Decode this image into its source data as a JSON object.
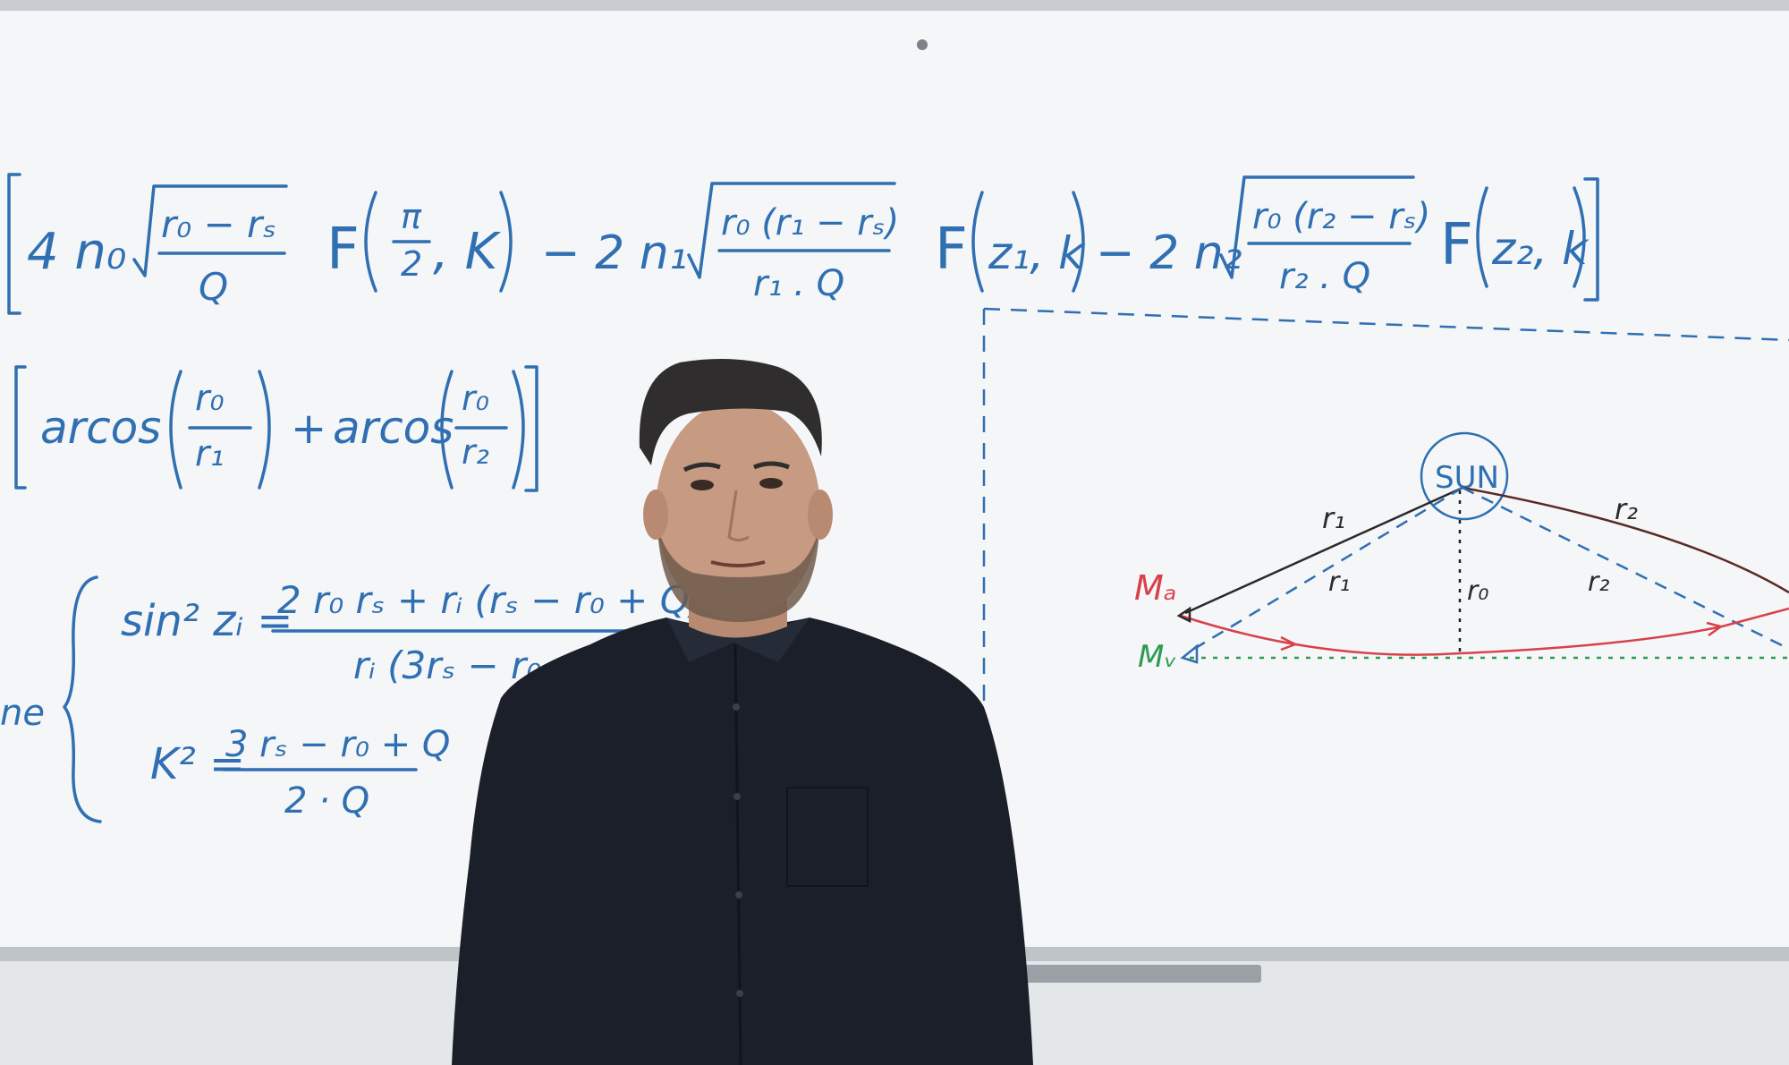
{
  "colors": {
    "board": "#f2f4f5",
    "wall": "#e6e9ec",
    "blue_marker": "#2f6fb2",
    "red_marker": "#d9414a",
    "green_marker": "#2e9a52",
    "shirt": "#1b1f2a"
  },
  "formula_top": {
    "t_4n0": "4 n₀",
    "t_num1": "r₀ − rₛ",
    "t_den1": "Q",
    "t_F1": "F",
    "t_pi": "π",
    "t_two": "2",
    "t_k1": ", K",
    "t_m2n1": "− 2 n₁",
    "t_num2": "r₀ (r₁ − rₛ)",
    "t_den2": "r₁ . Q",
    "t_F2": "F",
    "t_z1k": "z₁, k",
    "t_m2n2": "− 2 n₂",
    "t_num3": "r₀ (r₂ − rₛ)",
    "t_den3": "r₂ . Q",
    "t_F3": "F",
    "t_z2k": "z₂, k"
  },
  "formula_arcos": {
    "t_arcos1": "arcos",
    "t_num1": "r₀",
    "t_den1": "r₁",
    "t_plus": "+",
    "t_arcos2": "arcos",
    "t_num2": "r₀",
    "t_den2": "r₂"
  },
  "formula_system": {
    "t_lhs1": "sin² zᵢ =",
    "t_num1": "2 r₀ rₛ + rᵢ (rₛ − r₀ + Q)",
    "t_den1": "rᵢ (3rₛ − r₀ +",
    "t_lhs2": "K² =",
    "t_num2": "3 rₛ − r₀ + Q",
    "t_den2": "2 · Q",
    "t_side": "ne"
  },
  "diagram": {
    "sun_label": "SUN",
    "r1_solid": "r₁",
    "r2_solid": "r₂",
    "r1_dashed": "r₁",
    "r2_dashed": "r₂",
    "r0_label": "r₀",
    "ma_label": "Mₐ",
    "mv_label": "Mᵥ"
  }
}
